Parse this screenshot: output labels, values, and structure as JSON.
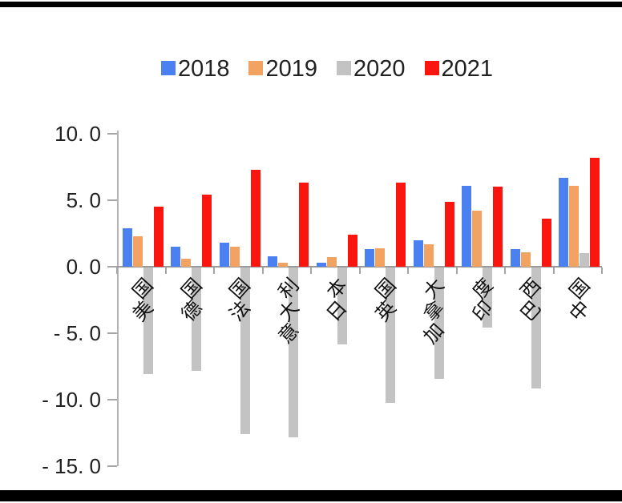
{
  "frame": {
    "background_color": "#ffffff",
    "top_bar_color": "#000000",
    "bottom_bar_color": "#000000"
  },
  "chart_data": {
    "type": "bar",
    "title": "",
    "categories": [
      "美国",
      "德国",
      "法国",
      "意大利",
      "日本",
      "英国",
      "加拿大",
      "印度",
      "巴西",
      "中国"
    ],
    "series": [
      {
        "name": "2018",
        "color": "#4a80f0",
        "values": [
          2.9,
          1.5,
          1.8,
          0.8,
          0.3,
          1.3,
          2.0,
          6.1,
          1.3,
          6.7
        ]
      },
      {
        "name": "2019",
        "color": "#f3a361",
        "values": [
          2.3,
          0.6,
          1.5,
          0.3,
          0.7,
          1.4,
          1.7,
          4.2,
          1.1,
          6.1
        ]
      },
      {
        "name": "2020",
        "color": "#c3c3c3",
        "values": [
          -8.0,
          -7.8,
          -12.5,
          -12.8,
          -5.8,
          -10.2,
          -8.4,
          -4.5,
          -9.1,
          1.0
        ]
      },
      {
        "name": "2021",
        "color": "#fa150f",
        "values": [
          4.5,
          5.4,
          7.3,
          6.3,
          2.4,
          6.3,
          4.9,
          6.0,
          3.6,
          8.2
        ]
      }
    ],
    "y_axis": {
      "range": [
        -15,
        10
      ],
      "ticks": [
        {
          "value": 10,
          "label": "10. 0"
        },
        {
          "value": 5,
          "label": "5. 0"
        },
        {
          "value": 0,
          "label": "0. 0"
        },
        {
          "value": -5,
          "label": "- 5. 0"
        },
        {
          "value": -10,
          "label": "- 10. 0"
        },
        {
          "value": -15,
          "label": "- 15. 0"
        }
      ]
    },
    "legend": {
      "position": "top",
      "labels": [
        "2018",
        "2019",
        "2020",
        "2021"
      ]
    },
    "grid": false,
    "axis_color": "#b3b3b3",
    "text_color": "#212121"
  }
}
